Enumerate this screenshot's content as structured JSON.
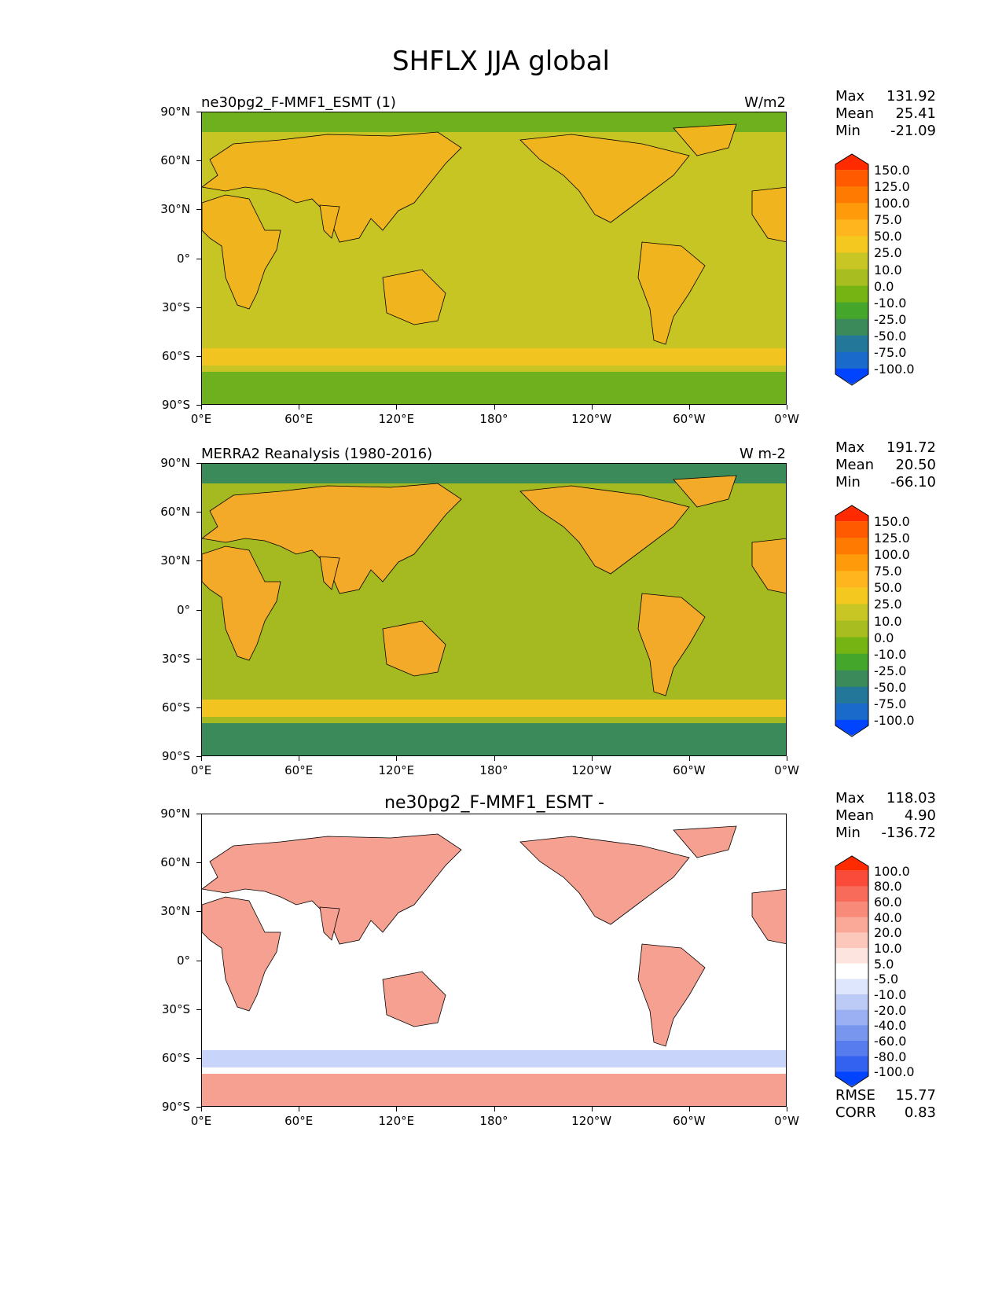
{
  "figure": {
    "title": "SHFLX JJA global"
  },
  "axes": {
    "lat_ticks": [
      "90°N",
      "60°N",
      "30°N",
      "0°",
      "30°S",
      "60°S",
      "90°S"
    ],
    "lon_ticks": [
      "0°E",
      "60°E",
      "120°E",
      "180°",
      "120°W",
      "60°W",
      "0°W"
    ]
  },
  "panels": [
    {
      "title_left": "ne30pg2_F-MMF1_ESMT (1)",
      "title_right": "W/m2",
      "title_center": "",
      "stats": [
        {
          "label": "Max",
          "value": "131.92"
        },
        {
          "label": "Mean",
          "value": "25.41"
        },
        {
          "label": "Min",
          "value": "-21.09"
        }
      ],
      "colorbar": {
        "labels": [
          "150.0",
          "125.0",
          "100.0",
          "75.0",
          "50.0",
          "25.0",
          "10.0",
          "0.0",
          "-10.0",
          "-25.0",
          "-50.0",
          "-75.0",
          "-100.0"
        ],
        "colors": [
          "#ff2a00",
          "#ff5a00",
          "#ff7a00",
          "#ff9a0a",
          "#ffb51e",
          "#f5c820",
          "#c8c624",
          "#a8be20",
          "#76b414",
          "#44a62a",
          "#3a8a5a",
          "#23789a",
          "#1a6acc",
          "#0044ff"
        ]
      },
      "ocean_color": "#c6c524",
      "land_color": "#f0b41e",
      "polar_color": "#6fb01e"
    },
    {
      "title_left": "MERRA2 Reanalysis (1980-2016)",
      "title_right": "W m-2",
      "title_center": "",
      "stats": [
        {
          "label": "Max",
          "value": "191.72"
        },
        {
          "label": "Mean",
          "value": "20.50"
        },
        {
          "label": "Min",
          "value": "-66.10"
        }
      ],
      "colorbar": {
        "labels": [
          "150.0",
          "125.0",
          "100.0",
          "75.0",
          "50.0",
          "25.0",
          "10.0",
          "0.0",
          "-10.0",
          "-25.0",
          "-50.0",
          "-75.0",
          "-100.0"
        ],
        "colors": [
          "#ff2a00",
          "#ff5a00",
          "#ff7a00",
          "#ff9a0a",
          "#ffb51e",
          "#f5c820",
          "#c8c624",
          "#a8be20",
          "#76b414",
          "#44a62a",
          "#3a8a5a",
          "#23789a",
          "#1a6acc",
          "#0044ff"
        ]
      },
      "ocean_color": "#a4ba20",
      "land_color": "#f3aa28",
      "polar_color": "#3a8a5a"
    },
    {
      "title_left": "",
      "title_right": "",
      "title_center": "ne30pg2_F-MMF1_ESMT -",
      "stats": [
        {
          "label": "Max",
          "value": "118.03"
        },
        {
          "label": "Mean",
          "value": "4.90"
        },
        {
          "label": "Min",
          "value": "-136.72"
        }
      ],
      "colorbar": {
        "labels": [
          "100.0",
          "80.0",
          "60.0",
          "40.0",
          "20.0",
          "10.0",
          "5.0",
          "-5.0",
          "-10.0",
          "-20.0",
          "-40.0",
          "-60.0",
          "-80.0",
          "-100.0"
        ],
        "colors": [
          "#ff2a00",
          "#fa4a3a",
          "#f86a5a",
          "#f88a7a",
          "#faa898",
          "#fcc8bc",
          "#fee4de",
          "#ffffff",
          "#dde6fc",
          "#bccbf6",
          "#9ab0f2",
          "#7896ee",
          "#567ced",
          "#3462f0",
          "#0044ff"
        ]
      },
      "ocean_color": "#ffffff",
      "land_color": "#f5a090",
      "polar_color": "#f5a090",
      "bottom_stats": [
        {
          "label": "RMSE",
          "value": "15.77"
        },
        {
          "label": "CORR",
          "value": "0.83"
        }
      ]
    }
  ]
}
